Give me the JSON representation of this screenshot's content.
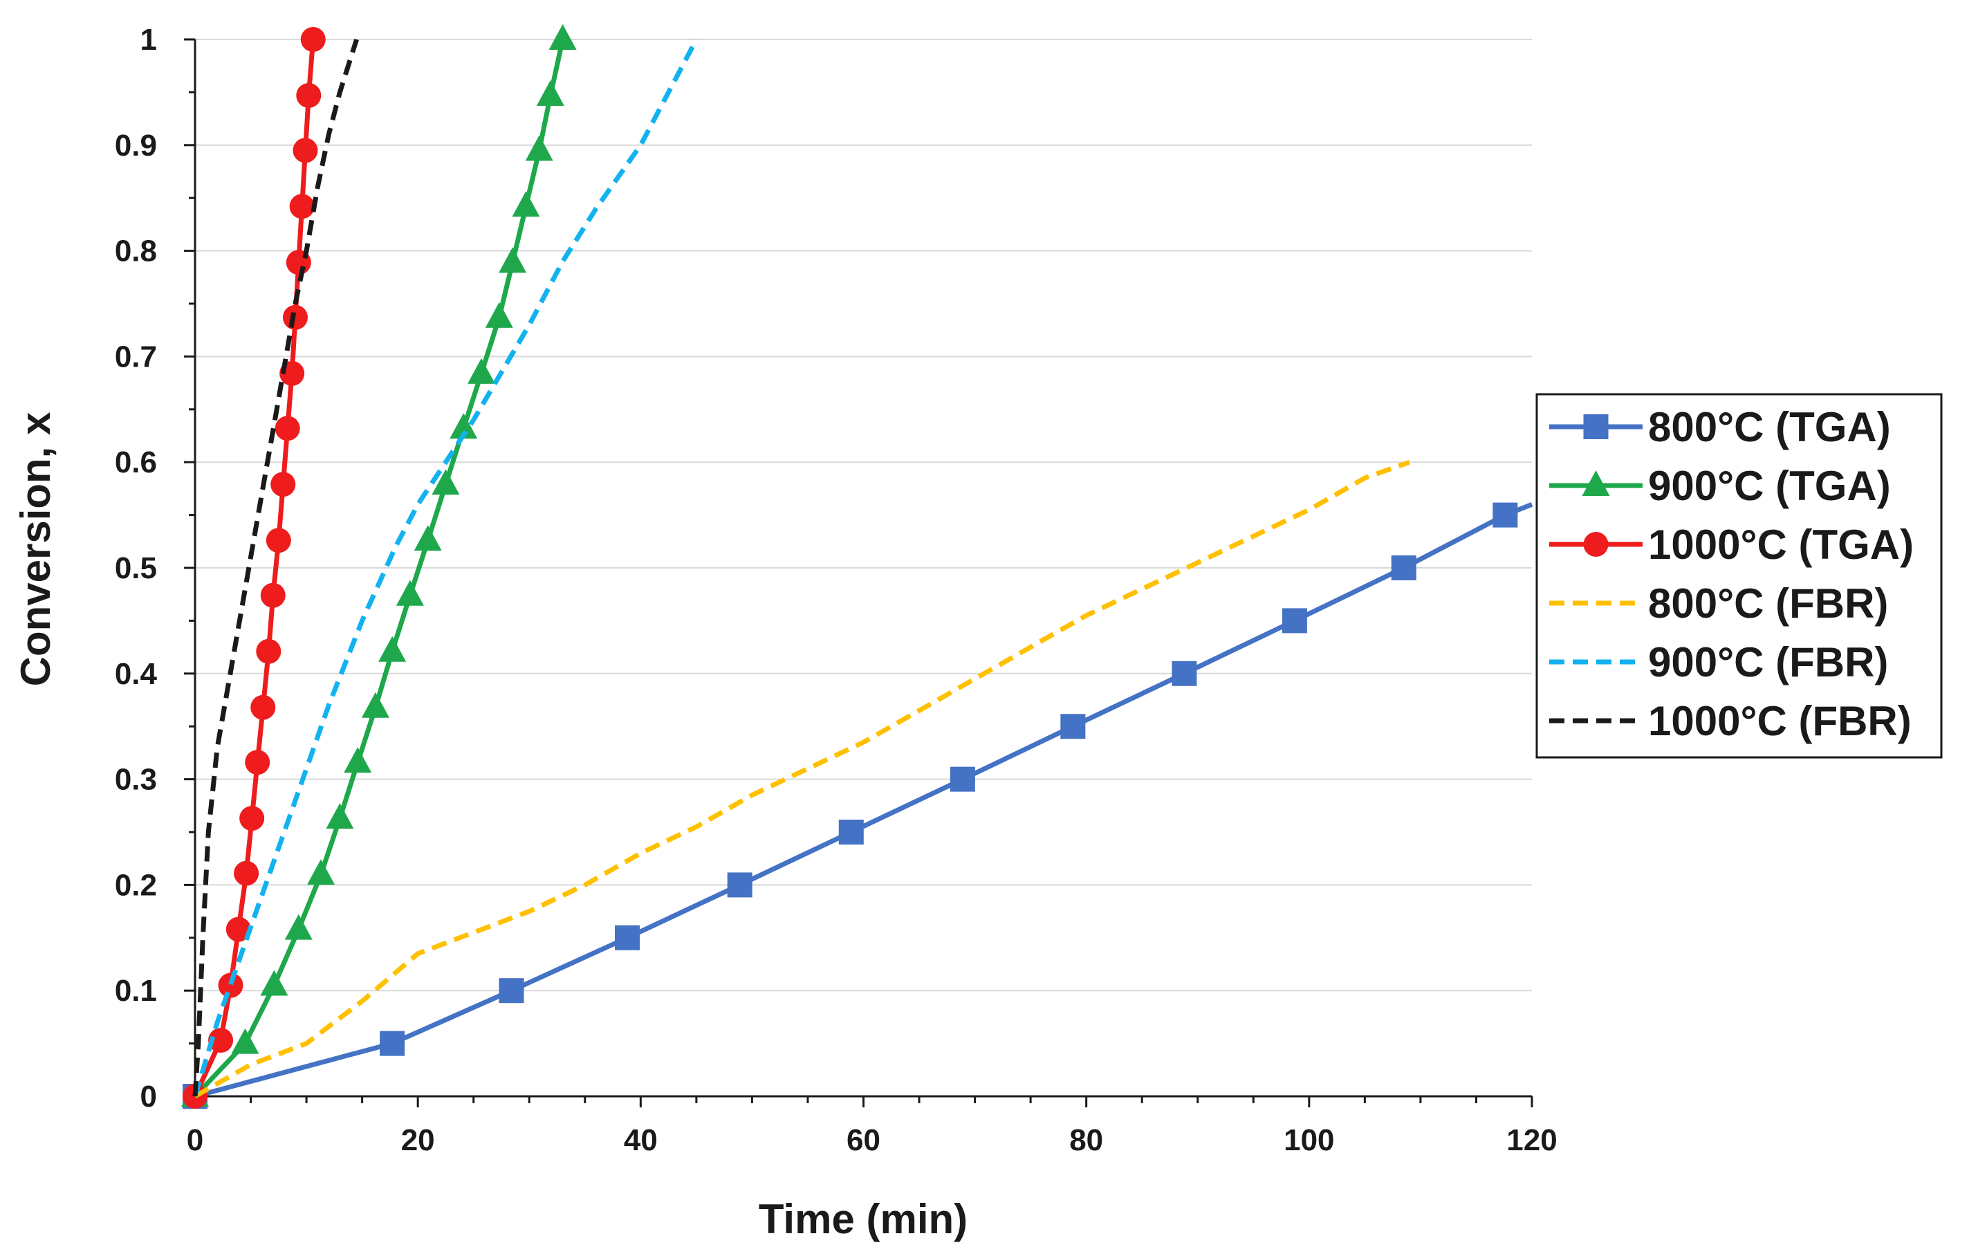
{
  "chart_data": {
    "type": "line",
    "title": "",
    "xlabel": "Time (min)",
    "ylabel": "Conversion, x",
    "xlim": [
      0,
      120
    ],
    "ylim": [
      0,
      1
    ],
    "x_ticks": [
      0,
      20,
      40,
      60,
      80,
      100,
      120
    ],
    "y_ticks": [
      0,
      0.1,
      0.2,
      0.3,
      0.4,
      0.5,
      0.6,
      0.7,
      0.8,
      0.9,
      1
    ],
    "grid": "horizontal",
    "legend_position": "right",
    "series": [
      {
        "name": "800°C (TGA)",
        "color": "#4472C4",
        "style": "solid",
        "marker": "square",
        "x": [
          0,
          17.7,
          28.4,
          38.8,
          48.9,
          58.9,
          68.9,
          78.8,
          88.8,
          98.7,
          108.5,
          117.6,
          120
        ],
        "y": [
          0,
          0.05,
          0.1,
          0.15,
          0.2,
          0.25,
          0.3,
          0.35,
          0.4,
          0.45,
          0.5,
          0.55,
          0.56
        ],
        "marker_points": 12
      },
      {
        "name": "900°C (TGA)",
        "color": "#1EA84B",
        "style": "solid",
        "marker": "triangle",
        "x": [
          0,
          4.5,
          7.1,
          9.3,
          11.3,
          13.0,
          14.6,
          16.2,
          17.7,
          19.3,
          20.9,
          22.5,
          24.1,
          25.7,
          27.3,
          28.5,
          29.7,
          30.9,
          31.9,
          33.0
        ],
        "y": [
          0,
          0.05,
          0.105,
          0.158,
          0.21,
          0.263,
          0.316,
          0.368,
          0.421,
          0.474,
          0.526,
          0.579,
          0.632,
          0.684,
          0.737,
          0.789,
          0.842,
          0.895,
          0.947,
          1.0
        ]
      },
      {
        "name": "1000°C (TGA)",
        "color": "#EE1C1C",
        "style": "solid",
        "marker": "circle",
        "x": [
          0,
          2.3,
          3.2,
          3.9,
          4.6,
          5.1,
          5.6,
          6.1,
          6.6,
          7.0,
          7.5,
          7.9,
          8.3,
          8.7,
          9.0,
          9.3,
          9.6,
          9.9,
          10.2,
          10.6
        ],
        "y": [
          0,
          0.053,
          0.105,
          0.158,
          0.211,
          0.263,
          0.316,
          0.368,
          0.421,
          0.474,
          0.526,
          0.579,
          0.632,
          0.684,
          0.737,
          0.789,
          0.842,
          0.895,
          0.947,
          1.0
        ]
      },
      {
        "name": "800°C (FBR)",
        "color": "#FFC000",
        "style": "dashed",
        "marker": "none",
        "x": [
          0,
          5,
          10,
          15,
          20,
          25,
          30,
          35,
          40,
          45,
          50,
          55,
          60,
          65,
          70,
          75,
          80,
          85,
          90,
          95,
          100,
          105,
          109
        ],
        "y": [
          0,
          0.03,
          0.05,
          0.09,
          0.135,
          0.155,
          0.175,
          0.2,
          0.23,
          0.255,
          0.285,
          0.31,
          0.335,
          0.365,
          0.395,
          0.425,
          0.455,
          0.48,
          0.505,
          0.53,
          0.555,
          0.585,
          0.6
        ]
      },
      {
        "name": "900°C (FBR)",
        "color": "#12B2F0",
        "style": "dashed",
        "marker": "none",
        "x": [
          0,
          2,
          5,
          8,
          10,
          12,
          15,
          18,
          20,
          25,
          30,
          33,
          36,
          40,
          43,
          45
        ],
        "y": [
          0,
          0.07,
          0.16,
          0.25,
          0.31,
          0.37,
          0.45,
          0.52,
          0.56,
          0.64,
          0.73,
          0.79,
          0.84,
          0.9,
          0.96,
          1.0
        ]
      },
      {
        "name": "1000°C (FBR)",
        "color": "#1a1a1a",
        "style": "dashed",
        "marker": "none",
        "x": [
          0,
          0.3,
          0.7,
          1.2,
          2,
          3,
          4,
          5,
          6,
          7,
          8,
          9,
          10,
          11,
          12,
          13,
          14.5
        ],
        "y": [
          0,
          0.05,
          0.15,
          0.25,
          0.33,
          0.39,
          0.45,
          0.51,
          0.57,
          0.63,
          0.69,
          0.75,
          0.8,
          0.86,
          0.91,
          0.95,
          1.0
        ]
      }
    ]
  }
}
